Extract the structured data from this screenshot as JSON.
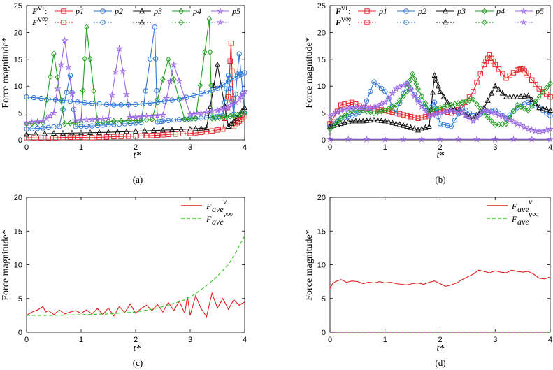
{
  "figure": {
    "colors": {
      "p1": "#e8262a",
      "p2": "#2f78d6",
      "p3": "#111111",
      "p4": "#22a021",
      "p5": "#9b6ae6",
      "red": "#e02020",
      "green": "#33cc22"
    }
  },
  "chart_data": [
    {
      "id": "a",
      "type": "line",
      "caption": "(a)",
      "xlabel": "t*",
      "ylabel": "Force magnitude*",
      "xlim": [
        0,
        4
      ],
      "ylim": [
        0,
        25
      ],
      "xticks": [
        "0",
        "1",
        "2",
        "3",
        "4"
      ],
      "yticks": [
        "0",
        "5",
        "10",
        "15",
        "20",
        "25"
      ],
      "grid": false,
      "legend_row1_prefix": "F",
      "legend_row1_sup": "vi",
      "legend_row2_prefix": "F",
      "legend_row2_sup": "v∞",
      "legend_labels": [
        "p1",
        "p2",
        "p3",
        "p4",
        "p5"
      ],
      "series": [
        {
          "name": "p1",
          "color": "#e8262a",
          "marker": "square",
          "x": [
            0,
            0.4,
            0.8,
            1.2,
            1.6,
            2.0,
            2.3,
            2.6,
            3.0,
            3.3,
            3.6,
            3.7,
            3.75,
            3.8,
            3.9,
            4.0
          ],
          "y": [
            0.4,
            0.3,
            0.5,
            0.4,
            0.6,
            0.7,
            0.8,
            1.0,
            1.2,
            1.5,
            2.0,
            8.0,
            18.0,
            2.5,
            3.5,
            4.5
          ]
        },
        {
          "name": "p2",
          "color": "#2f78d6",
          "marker": "circle",
          "x": [
            0,
            0.3,
            0.6,
            0.8,
            0.9,
            1.2,
            1.5,
            1.8,
            2.1,
            2.35,
            2.4,
            2.5,
            2.8,
            3.1,
            3.4,
            3.6,
            3.7,
            3.8,
            3.9,
            4.0
          ],
          "y": [
            2.0,
            2.2,
            2.5,
            12.0,
            2.5,
            2.6,
            2.8,
            3.0,
            3.2,
            21.0,
            3.3,
            3.5,
            3.8,
            4.0,
            4.2,
            4.5,
            12.0,
            4.8,
            16.0,
            5.0
          ]
        },
        {
          "name": "p3",
          "color": "#111111",
          "marker": "triangle",
          "x": [
            0,
            0.5,
            1.0,
            1.5,
            2.0,
            2.5,
            3.0,
            3.3,
            3.5,
            3.7,
            3.85,
            4.0
          ],
          "y": [
            1.0,
            1.2,
            1.3,
            1.4,
            1.6,
            1.8,
            2.0,
            2.2,
            14.0,
            2.5,
            4.0,
            6.0
          ]
        },
        {
          "name": "p4",
          "color": "#22a021",
          "marker": "diamond",
          "x": [
            0,
            0.3,
            0.5,
            0.7,
            1.0,
            1.1,
            1.3,
            1.6,
            2.0,
            2.3,
            2.6,
            2.9,
            3.1,
            3.35,
            3.4,
            3.6,
            3.8,
            4.0
          ],
          "y": [
            3.0,
            3.2,
            16.0,
            3.0,
            3.3,
            21.0,
            3.2,
            3.5,
            3.6,
            3.8,
            15.0,
            3.8,
            4.0,
            22.5,
            4.0,
            4.2,
            4.5,
            5.0
          ]
        },
        {
          "name": "p5",
          "color": "#9b6ae6",
          "marker": "star",
          "x": [
            0,
            0.3,
            0.5,
            0.7,
            0.9,
            1.2,
            1.5,
            1.7,
            1.9,
            2.2,
            2.5,
            2.7,
            3.0,
            3.2,
            3.5,
            3.7,
            3.9,
            4.0
          ],
          "y": [
            3.2,
            3.5,
            5.0,
            18.5,
            3.6,
            3.8,
            4.0,
            17.0,
            4.2,
            4.4,
            4.6,
            14.0,
            4.8,
            5.0,
            5.5,
            6.0,
            7.5,
            9.0
          ]
        },
        {
          "name": "p2 inf",
          "color": "#2f78d6",
          "marker": "circle",
          "dashed": false,
          "thick": true,
          "x": [
            0,
            0.4,
            0.8,
            1.2,
            1.6,
            2.0,
            2.4,
            2.8,
            3.2,
            3.5,
            3.8,
            4.0
          ],
          "y": [
            8.0,
            7.6,
            7.2,
            6.8,
            6.5,
            6.6,
            7.0,
            7.6,
            8.6,
            9.6,
            11.5,
            12.5
          ]
        }
      ]
    },
    {
      "id": "b",
      "type": "line",
      "caption": "(b)",
      "xlabel": "t*",
      "ylabel": "Force magnitude*",
      "xlim": [
        0,
        4
      ],
      "ylim": [
        0,
        25
      ],
      "xticks": [
        "0",
        "1",
        "2",
        "3",
        "4"
      ],
      "yticks": [
        "0",
        "5",
        "10",
        "15",
        "20",
        "25"
      ],
      "grid": false,
      "legend_row1_prefix": "F",
      "legend_row1_sup": "vi",
      "legend_row2_prefix": "F",
      "legend_row2_sup": "v∞",
      "legend_labels": [
        "p1",
        "p2",
        "p3",
        "p4",
        "p5"
      ],
      "series": [
        {
          "name": "p1",
          "color": "#e8262a",
          "marker": "square",
          "x": [
            0,
            0.2,
            0.4,
            0.6,
            0.8,
            1.0,
            1.2,
            1.4,
            1.6,
            1.8,
            2.0,
            2.2,
            2.4,
            2.6,
            2.8,
            2.9,
            3.0,
            3.2,
            3.4,
            3.5,
            3.6,
            3.8,
            4.0
          ],
          "y": [
            3.0,
            6.5,
            7.0,
            6.0,
            5.8,
            5.5,
            5.0,
            4.5,
            4.0,
            4.5,
            5.5,
            5.0,
            6.0,
            9.0,
            14.0,
            15.8,
            14.0,
            11.5,
            13.0,
            13.3,
            12.0,
            9.5,
            8.0
          ]
        },
        {
          "name": "p2",
          "color": "#2f78d6",
          "marker": "circle",
          "x": [
            0,
            0.2,
            0.4,
            0.6,
            0.8,
            1.0,
            1.2,
            1.4,
            1.6,
            1.8,
            1.9,
            2.0,
            2.2,
            2.4,
            2.6,
            2.8,
            3.0,
            3.2,
            3.4,
            3.6,
            3.8,
            4.0
          ],
          "y": [
            2.5,
            4.0,
            4.5,
            5.5,
            10.8,
            9.0,
            5.0,
            10.5,
            7.5,
            5.5,
            7.0,
            3.0,
            2.5,
            6.0,
            4.5,
            5.0,
            5.5,
            4.0,
            6.0,
            7.0,
            6.0,
            4.5
          ]
        },
        {
          "name": "p3",
          "color": "#111111",
          "marker": "triangle",
          "x": [
            0,
            0.2,
            0.4,
            0.6,
            0.8,
            1.0,
            1.2,
            1.4,
            1.6,
            1.8,
            1.9,
            2.0,
            2.2,
            2.4,
            2.6,
            2.8,
            3.0,
            3.2,
            3.4,
            3.6,
            3.8,
            4.0
          ],
          "y": [
            2.5,
            3.0,
            3.5,
            3.5,
            3.7,
            3.5,
            3.0,
            2.5,
            1.8,
            2.5,
            12.0,
            9.0,
            6.0,
            5.0,
            4.0,
            6.0,
            10.0,
            8.0,
            8.0,
            8.2,
            6.0,
            5.5
          ]
        },
        {
          "name": "p4",
          "color": "#22a021",
          "marker": "diamond",
          "x": [
            0,
            0.2,
            0.4,
            0.6,
            0.8,
            1.0,
            1.2,
            1.4,
            1.5,
            1.6,
            1.8,
            2.0,
            2.2,
            2.4,
            2.6,
            2.8,
            3.0,
            3.2,
            3.4,
            3.6,
            3.8,
            4.0
          ],
          "y": [
            2.0,
            4.0,
            5.5,
            5.5,
            5.0,
            5.5,
            6.5,
            9.0,
            12.3,
            9.5,
            5.5,
            6.0,
            6.5,
            7.0,
            7.5,
            5.0,
            2.8,
            3.0,
            6.5,
            5.5,
            8.0,
            10.5
          ]
        },
        {
          "name": "p5",
          "color": "#9b6ae6",
          "marker": "star",
          "x": [
            0,
            0.2,
            0.4,
            0.6,
            0.8,
            1.0,
            1.2,
            1.4,
            1.6,
            1.8,
            2.0,
            2.2,
            2.4,
            2.6,
            2.8,
            3.0,
            3.2,
            3.4,
            3.6,
            3.8,
            4.0
          ],
          "y": [
            4.5,
            5.5,
            6.0,
            6.0,
            6.0,
            7.0,
            9.5,
            10.5,
            7.0,
            4.5,
            5.0,
            5.5,
            5.0,
            3.5,
            5.5,
            5.0,
            4.0,
            3.0,
            2.0,
            1.5,
            2.0
          ]
        },
        {
          "name": "inf",
          "color": "#9b6ae6",
          "marker": "star",
          "x": [
            0,
            1,
            2,
            3,
            4
          ],
          "y": [
            0.1,
            0.1,
            0.1,
            0.1,
            0.1
          ]
        }
      ]
    },
    {
      "id": "c",
      "type": "line",
      "caption": "(c)",
      "xlabel": "t*",
      "ylabel": "Force magnitude*",
      "xlim": [
        0,
        4
      ],
      "ylim": [
        0,
        20
      ],
      "xticks": [
        "0",
        "1",
        "2",
        "3",
        "4"
      ],
      "yticks": [
        "0",
        "5",
        "10",
        "15",
        "20"
      ],
      "grid": false,
      "legend_main": "F",
      "legend_sub": "ave",
      "legend_sup1": "v",
      "legend_sup2": "v∞",
      "series": [
        {
          "name": "Fave v",
          "color": "#e02020",
          "x": [
            0,
            0.1,
            0.2,
            0.3,
            0.35,
            0.4,
            0.5,
            0.6,
            0.7,
            0.8,
            0.9,
            1.0,
            1.1,
            1.2,
            1.3,
            1.4,
            1.5,
            1.6,
            1.7,
            1.8,
            1.9,
            2.0,
            2.1,
            2.2,
            2.3,
            2.4,
            2.5,
            2.6,
            2.7,
            2.8,
            2.9,
            2.95,
            3.0,
            3.1,
            3.2,
            3.3,
            3.4,
            3.5,
            3.6,
            3.7,
            3.8,
            3.9,
            4.0
          ],
          "y": [
            2.5,
            3.0,
            3.3,
            3.8,
            3.0,
            3.2,
            2.6,
            3.3,
            2.7,
            3.0,
            3.2,
            2.8,
            3.3,
            2.7,
            3.5,
            2.6,
            3.6,
            2.4,
            3.8,
            2.9,
            4.2,
            2.8,
            3.5,
            4.0,
            3.2,
            4.1,
            3.0,
            4.4,
            3.2,
            4.6,
            2.8,
            5.3,
            2.5,
            5.4,
            3.5,
            2.3,
            5.8,
            3.6,
            5.0,
            3.4,
            4.8,
            4.0,
            4.5
          ]
        },
        {
          "name": "Fave v inf",
          "color": "#33cc22",
          "dashed": true,
          "x": [
            0,
            0.5,
            1.0,
            1.5,
            2.0,
            2.3,
            2.6,
            2.9,
            3.1,
            3.3,
            3.5,
            3.7,
            3.85,
            4.0
          ],
          "y": [
            2.5,
            2.5,
            2.6,
            2.7,
            3.0,
            3.4,
            4.0,
            4.8,
            5.7,
            6.9,
            8.3,
            10.0,
            12.0,
            14.3
          ]
        }
      ]
    },
    {
      "id": "d",
      "type": "line",
      "caption": "(d)",
      "xlabel": "t*",
      "ylabel": "Force magnitude*",
      "xlim": [
        0,
        4
      ],
      "ylim": [
        0,
        20
      ],
      "xticks": [
        "0",
        "1",
        "2",
        "3",
        "4"
      ],
      "yticks": [
        "0",
        "5",
        "10",
        "15",
        "20"
      ],
      "grid": false,
      "legend_main": "F",
      "legend_sub": "ave",
      "legend_sup1": "v",
      "legend_sup2": "v∞",
      "series": [
        {
          "name": "Fave v",
          "color": "#e02020",
          "x": [
            0,
            0.05,
            0.1,
            0.2,
            0.3,
            0.4,
            0.5,
            0.6,
            0.7,
            0.8,
            0.9,
            1.0,
            1.1,
            1.2,
            1.3,
            1.4,
            1.5,
            1.6,
            1.7,
            1.8,
            1.9,
            2.0,
            2.1,
            2.2,
            2.3,
            2.4,
            2.5,
            2.6,
            2.7,
            2.8,
            2.9,
            3.0,
            3.1,
            3.2,
            3.3,
            3.4,
            3.5,
            3.6,
            3.7,
            3.8,
            3.9,
            4.0
          ],
          "y": [
            6.5,
            7.2,
            7.5,
            7.8,
            7.4,
            7.6,
            7.5,
            7.2,
            7.4,
            7.3,
            7.5,
            7.3,
            7.4,
            7.2,
            7.1,
            7.0,
            7.2,
            7.3,
            7.1,
            7.4,
            7.6,
            7.2,
            6.8,
            7.0,
            7.3,
            7.8,
            8.2,
            8.6,
            9.2,
            9.0,
            8.8,
            9.1,
            8.9,
            8.8,
            9.2,
            9.0,
            8.9,
            9.0,
            8.6,
            8.0,
            7.9,
            8.2
          ]
        },
        {
          "name": "Fave v inf",
          "color": "#33cc22",
          "dashed": true,
          "x": [
            0,
            1,
            2,
            3,
            4
          ],
          "y": [
            0.05,
            0.05,
            0.05,
            0.05,
            0.05
          ]
        }
      ]
    }
  ]
}
